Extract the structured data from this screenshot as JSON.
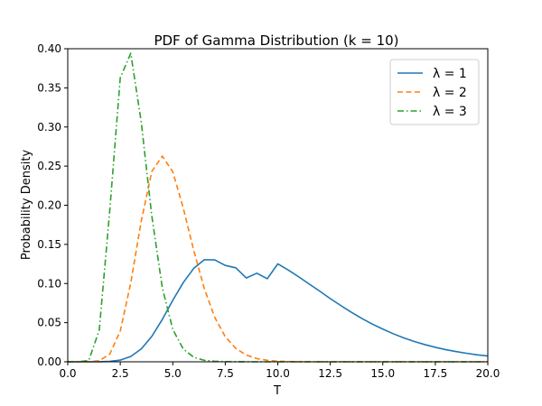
{
  "chart_data": {
    "type": "line",
    "title": "PDF of Gamma Distribution (k = 10)",
    "xlabel": "T",
    "ylabel": "Probability Density",
    "xlim": [
      0,
      20
    ],
    "ylim": [
      0,
      0.4
    ],
    "xticks": [
      0,
      2.5,
      5,
      7.5,
      10,
      12.5,
      15,
      17.5,
      20
    ],
    "xtick_labels": [
      "0.0",
      "2.5",
      "5.0",
      "7.5",
      "10.0",
      "12.5",
      "15.0",
      "17.5",
      "20.0"
    ],
    "yticks": [
      0,
      0.05,
      0.1,
      0.15,
      0.2,
      0.25,
      0.3,
      0.35,
      0.4
    ],
    "ytick_labels": [
      "0.00",
      "0.05",
      "0.10",
      "0.15",
      "0.20",
      "0.25",
      "0.30",
      "0.35",
      "0.40"
    ],
    "legend_position": "top-right",
    "grid": false,
    "x": [
      0.0,
      0.5,
      1.0,
      1.5,
      2.0,
      2.5,
      3.0,
      3.5,
      4.0,
      4.5,
      5.0,
      5.5,
      6.0,
      6.5,
      7.0,
      7.5,
      8.0,
      8.5,
      9.0,
      9.5,
      10.0,
      10.5,
      11.0,
      11.5,
      12.0,
      12.5,
      13.0,
      13.5,
      14.0,
      14.5,
      15.0,
      15.5,
      16.0,
      16.5,
      17.0,
      17.5,
      18.0,
      18.5,
      19.0,
      19.5,
      20.0
    ],
    "series": [
      {
        "name": "λ = 1",
        "color": "#1f77b4",
        "dash": "solid",
        "values": [
          0.0,
          0.0,
          0.0,
          0.0001,
          0.0005,
          0.0022,
          0.0068,
          0.0164,
          0.0324,
          0.054,
          0.0785,
          0.1012,
          0.1194,
          0.1304,
          0.1302,
          0.1231,
          0.1201,
          0.1071,
          0.1132,
          0.1061,
          0.1251,
          0.1172,
          0.1085,
          0.0993,
          0.0902,
          0.0807,
          0.0719,
          0.0633,
          0.0554,
          0.0482,
          0.0418,
          0.0358,
          0.0306,
          0.0259,
          0.022,
          0.0185,
          0.0155,
          0.013,
          0.0108,
          0.0089,
          0.0074
        ]
      },
      {
        "name": "λ = 2",
        "color": "#ff7f0e",
        "dash": "dashed",
        "values": [
          0.0,
          0.0,
          0.0001,
          0.0014,
          0.0099,
          0.0393,
          0.1007,
          0.1798,
          0.2431,
          0.2628,
          0.2428,
          0.1965,
          0.1423,
          0.0937,
          0.0567,
          0.0321,
          0.0171,
          0.0086,
          0.0041,
          0.0019,
          0.0008,
          0.0003,
          0.0001,
          0.0,
          0.0,
          0.0,
          0.0,
          0.0,
          0.0,
          0.0,
          0.0,
          0.0,
          0.0,
          0.0,
          0.0,
          0.0,
          0.0,
          0.0,
          0.0,
          0.0,
          0.0
        ]
      },
      {
        "name": "λ = 3",
        "color": "#2ca02c",
        "dash": "dashdot",
        "values": [
          0.0,
          0.0,
          0.0017,
          0.0405,
          0.1933,
          0.3629,
          0.3942,
          0.3061,
          0.1867,
          0.0949,
          0.0414,
          0.0163,
          0.0058,
          0.0019,
          0.0006,
          0.0002,
          0.0001,
          0.0,
          0.0,
          0.0,
          0.0,
          0.0,
          0.0,
          0.0,
          0.0,
          0.0,
          0.0,
          0.0,
          0.0,
          0.0,
          0.0,
          0.0,
          0.0,
          0.0,
          0.0,
          0.0,
          0.0,
          0.0,
          0.0,
          0.0,
          0.0
        ]
      }
    ]
  }
}
